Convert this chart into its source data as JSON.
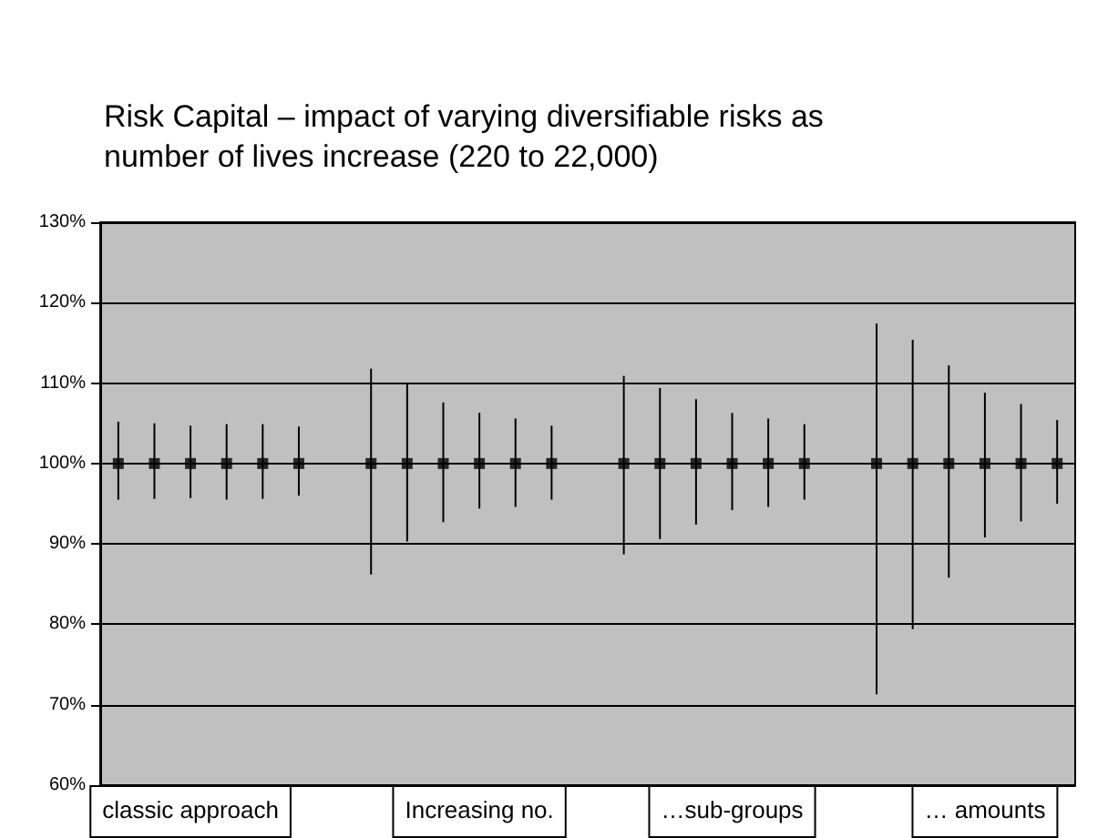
{
  "chart_data": {
    "type": "scatter",
    "title": "Risk Capital – impact of varying diversifiable risks as number of lives increase (220 to 22,000)",
    "categories": [
      null,
      null,
      "classic approach",
      null,
      null,
      null,
      null,
      null,
      null,
      null,
      "Increasing no.",
      null,
      null,
      null,
      null,
      null,
      null,
      "…sub-groups",
      null,
      null,
      null,
      null,
      null,
      null,
      "… amounts",
      null,
      null
    ],
    "series": [
      {
        "color": "#000000",
        "values": [
          100,
          100,
          100,
          100,
          100,
          100,
          null,
          100,
          100,
          100,
          100,
          100,
          100,
          null,
          100,
          100,
          100,
          100,
          100,
          100,
          null,
          100,
          100,
          100,
          100,
          100,
          100
        ],
        "errors": [
          [
            95.5,
            105.2
          ],
          [
            95.6,
            105
          ],
          [
            95.7,
            104.7
          ],
          [
            95.5,
            104.9
          ],
          [
            95.6,
            104.9
          ],
          [
            96,
            104.6
          ],
          null,
          [
            86.2,
            111.8
          ],
          [
            90.3,
            110
          ],
          [
            92.7,
            107.6
          ],
          [
            94.4,
            106.3
          ],
          [
            94.6,
            105.6
          ],
          [
            95.5,
            104.7
          ],
          null,
          [
            88.7,
            110.9
          ],
          [
            90.6,
            109.4
          ],
          [
            92.4,
            108
          ],
          [
            94.2,
            106.3
          ],
          [
            94.6,
            105.6
          ],
          [
            95.5,
            104.9
          ],
          null,
          [
            71.3,
            117.4
          ],
          [
            79.4,
            115.4
          ],
          [
            85.8,
            112.2
          ],
          [
            90.8,
            108.8
          ],
          [
            92.8,
            107.4
          ],
          [
            95,
            105.4
          ]
        ]
      }
    ],
    "ylim": [
      60,
      130
    ],
    "yticks": [
      {
        "value": 60,
        "label": "60%"
      },
      {
        "value": 70,
        "label": "70%"
      },
      {
        "value": 80,
        "label": "80%"
      },
      {
        "value": 90,
        "label": "90%"
      },
      {
        "value": 100,
        "label": "100%"
      },
      {
        "value": 110,
        "label": "110%"
      },
      {
        "value": 120,
        "label": "120%"
      },
      {
        "value": 130,
        "label": "130%"
      }
    ],
    "grid": "y",
    "marker": "square"
  }
}
